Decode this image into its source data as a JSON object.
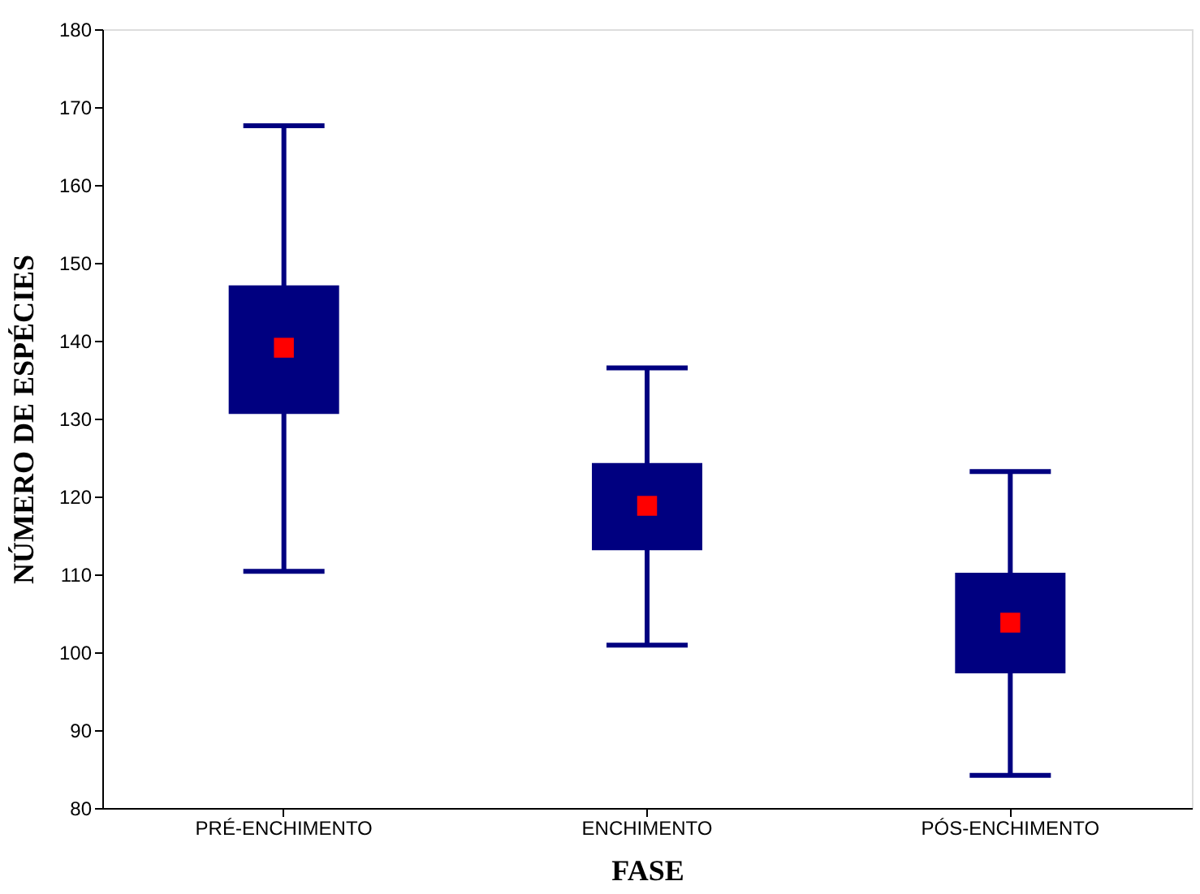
{
  "chart_data": {
    "type": "box",
    "xlabel": "FASE",
    "ylabel": "NÚMERO DE ESPÉCIES",
    "categories": [
      "PRÉ-ENCHIMENTO",
      "ENCHIMENTO",
      "PÓS-ENCHIMENTO"
    ],
    "series": [
      {
        "color": "#000080",
        "boxes": [
          {
            "low": 110.4,
            "q1": 130.6,
            "median": 139.1,
            "q3": 147.1,
            "high": 167.6
          },
          {
            "low": 100.9,
            "q1": 113.1,
            "median": 118.8,
            "q3": 124.3,
            "high": 136.5
          },
          {
            "low": 84.2,
            "q1": 97.3,
            "median": 103.8,
            "q3": 110.2,
            "high": 123.2
          }
        ]
      }
    ],
    "ylim": [
      80,
      180
    ],
    "yticks": [
      80,
      90,
      100,
      110,
      120,
      130,
      140,
      150,
      160,
      170,
      180
    ],
    "grid": false
  }
}
